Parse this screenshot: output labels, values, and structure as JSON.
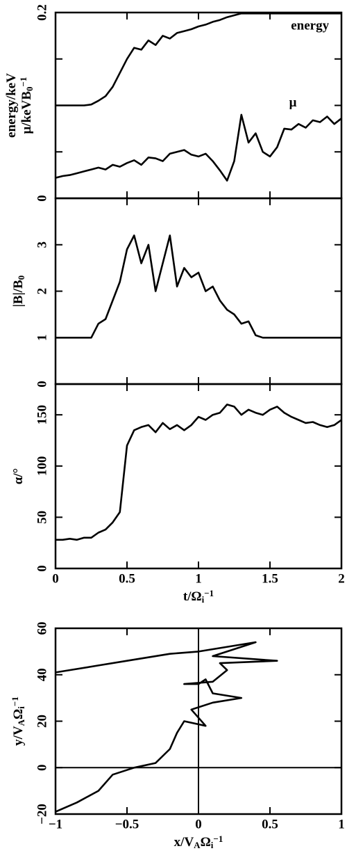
{
  "chart_data": [
    {
      "type": "line",
      "ylabel": [
        [
          [
            "energy/keV",
            "normal"
          ]
        ],
        [
          [
            "μ/keVB",
            "normal"
          ],
          [
            "0",
            "sub"
          ],
          [
            "−1",
            "sup"
          ]
        ]
      ],
      "annotations": [
        "energy",
        "μ"
      ],
      "xlim": [
        0,
        2
      ],
      "xticks": [
        0,
        0.5,
        1,
        1.5,
        2
      ],
      "xtick_labels": false,
      "ylim": [
        0,
        0.2
      ],
      "yticks": [
        0,
        0.2
      ],
      "yticks_unlabeled": [
        0.05,
        0.1,
        0.15
      ],
      "x": [
        0,
        0.05,
        0.1,
        0.15,
        0.2,
        0.25,
        0.3,
        0.35,
        0.4,
        0.45,
        0.5,
        0.55,
        0.6,
        0.65,
        0.7,
        0.75,
        0.8,
        0.85,
        0.9,
        0.95,
        1,
        1.05,
        1.1,
        1.15,
        1.2,
        1.25,
        1.3,
        1.35,
        1.4,
        1.45,
        1.5,
        1.55,
        1.6,
        1.65,
        1.7,
        1.75,
        1.8,
        1.85,
        1.9,
        1.95,
        2
      ],
      "series": [
        {
          "color": "#000000",
          "values": [
            0.1,
            0.1,
            0.1,
            0.1,
            0.1,
            0.101,
            0.105,
            0.11,
            0.12,
            0.135,
            0.15,
            0.162,
            0.16,
            0.17,
            0.165,
            0.175,
            0.172,
            0.178,
            0.18,
            0.182,
            0.185,
            0.187,
            0.19,
            0.192,
            0.195,
            0.197,
            0.199,
            0.199,
            0.199,
            0.199,
            0.199,
            0.199,
            0.199,
            0.199,
            0.199,
            0.199,
            0.199,
            0.199,
            0.199,
            0.199,
            0.199
          ]
        },
        {
          "color": "#000000",
          "values": [
            0.022,
            0.024,
            0.025,
            0.027,
            0.029,
            0.031,
            0.033,
            0.031,
            0.036,
            0.034,
            0.038,
            0.041,
            0.036,
            0.044,
            0.043,
            0.04,
            0.048,
            0.05,
            0.052,
            0.047,
            0.045,
            0.048,
            0.04,
            0.03,
            0.019,
            0.04,
            0.09,
            0.06,
            0.07,
            0.05,
            0.045,
            0.055,
            0.075,
            0.074,
            0.08,
            0.076,
            0.084,
            0.082,
            0.088,
            0.08,
            0.086
          ]
        }
      ]
    },
    {
      "type": "line",
      "ylabel": [
        [
          [
            "|B|/B",
            "normal"
          ],
          [
            "0",
            "sub"
          ]
        ]
      ],
      "xlim": [
        0,
        2
      ],
      "xticks": [
        0,
        0.5,
        1,
        1.5,
        2
      ],
      "xtick_labels": false,
      "ylim": [
        0,
        4
      ],
      "yticks": [
        0,
        1,
        2,
        3
      ],
      "x": [
        0,
        0.05,
        0.1,
        0.15,
        0.2,
        0.25,
        0.3,
        0.35,
        0.4,
        0.45,
        0.5,
        0.55,
        0.6,
        0.65,
        0.7,
        0.75,
        0.8,
        0.85,
        0.9,
        0.95,
        1,
        1.05,
        1.1,
        1.15,
        1.2,
        1.25,
        1.3,
        1.35,
        1.4,
        1.45,
        1.5,
        1.55,
        1.6,
        1.65,
        1.7,
        1.75,
        1.8,
        1.85,
        1.9,
        1.95,
        2
      ],
      "series": [
        {
          "color": "#000000",
          "values": [
            1,
            1,
            1,
            1,
            1,
            1,
            1.3,
            1.4,
            1.8,
            2.2,
            2.9,
            3.2,
            2.6,
            3.0,
            2.0,
            2.6,
            3.2,
            2.1,
            2.5,
            2.3,
            2.4,
            2.0,
            2.1,
            1.8,
            1.6,
            1.5,
            1.3,
            1.35,
            1.05,
            1,
            1,
            1,
            1,
            1,
            1,
            1,
            1,
            1,
            1,
            1,
            1
          ]
        }
      ]
    },
    {
      "type": "line",
      "ylabel": [
        [
          [
            "α/°",
            "normal"
          ]
        ]
      ],
      "xlabel": [
        [
          [
            "t/Ω",
            "normal"
          ],
          [
            "i",
            "sub"
          ],
          [
            "−1",
            "sup"
          ]
        ]
      ],
      "xlim": [
        0,
        2
      ],
      "xticks": [
        0,
        0.5,
        1,
        1.5,
        2
      ],
      "xtick_labels": true,
      "ylim": [
        0,
        180
      ],
      "yticks": [
        0,
        50,
        100,
        150
      ],
      "x": [
        0,
        0.05,
        0.1,
        0.15,
        0.2,
        0.25,
        0.3,
        0.35,
        0.4,
        0.45,
        0.5,
        0.55,
        0.6,
        0.65,
        0.7,
        0.75,
        0.8,
        0.85,
        0.9,
        0.95,
        1,
        1.05,
        1.1,
        1.15,
        1.2,
        1.25,
        1.3,
        1.35,
        1.4,
        1.45,
        1.5,
        1.55,
        1.6,
        1.65,
        1.7,
        1.75,
        1.8,
        1.85,
        1.9,
        1.95,
        2
      ],
      "series": [
        {
          "color": "#000000",
          "values": [
            28,
            28,
            29,
            28,
            30,
            30,
            35,
            38,
            45,
            55,
            120,
            135,
            138,
            140,
            133,
            142,
            136,
            140,
            135,
            140,
            148,
            145,
            150,
            152,
            160,
            158,
            150,
            155,
            152,
            150,
            155,
            158,
            152,
            148,
            145,
            142,
            143,
            140,
            138,
            140,
            145
          ]
        }
      ]
    },
    {
      "type": "line",
      "ylabel": [
        [
          [
            "y/V",
            "normal"
          ],
          [
            "A",
            "sub"
          ],
          [
            "Ω",
            "normal"
          ],
          [
            "i",
            "sub"
          ],
          [
            "−1",
            "sup"
          ]
        ]
      ],
      "xlabel": [
        [
          [
            "x/V",
            "normal"
          ],
          [
            "A",
            "sub"
          ],
          [
            "Ω",
            "normal"
          ],
          [
            "i",
            "sub"
          ],
          [
            "−1",
            "sup"
          ]
        ]
      ],
      "xlim": [
        -1,
        1
      ],
      "xticks": [
        {
          "value": -1,
          "label": "−1"
        },
        {
          "value": -0.5,
          "label": "−0.5"
        },
        0,
        0.5,
        1
      ],
      "xtick_labels": true,
      "ylim": [
        -20,
        60
      ],
      "yticks": [
        {
          "value": -20,
          "label": "−20"
        },
        0,
        20,
        40,
        60
      ],
      "zero_lines": true,
      "x": [
        -1,
        -0.85,
        -0.7,
        -0.6,
        -0.45,
        -0.3,
        -0.2,
        -0.15,
        -0.1,
        0.05,
        -0.05,
        0.1,
        0.3,
        0.1,
        0.05,
        0,
        -0.1,
        0.1,
        0.2,
        0.15,
        0.55,
        0.1,
        0.4,
        0,
        -0.2,
        -0.5,
        -0.7,
        -1
      ],
      "series": [
        {
          "color": "#000000",
          "values": [
            -19,
            -15,
            -10,
            -3,
            0,
            2,
            8,
            15,
            20,
            18,
            25,
            28,
            30,
            32,
            38,
            36,
            36,
            37,
            42,
            45,
            46,
            48,
            54,
            50,
            49,
            46,
            44,
            41
          ]
        }
      ]
    }
  ]
}
